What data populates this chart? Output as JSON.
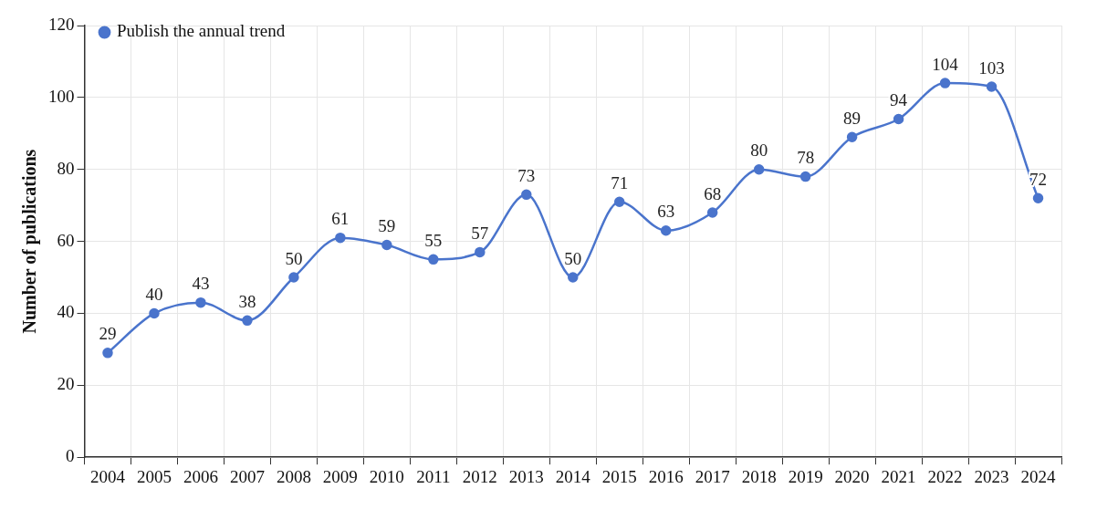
{
  "chart_data": {
    "type": "line",
    "ylabel": "Number of publications",
    "categories": [
      "2004",
      "2005",
      "2006",
      "2007",
      "2008",
      "2009",
      "2010",
      "2011",
      "2012",
      "2013",
      "2014",
      "2015",
      "2016",
      "2017",
      "2018",
      "2019",
      "2020",
      "2021",
      "2022",
      "2023",
      "2024"
    ],
    "series": [
      {
        "name": "Publish the annual trend",
        "color": "#4a74cc",
        "values": [
          29,
          40,
          43,
          38,
          50,
          61,
          59,
          55,
          57,
          73,
          50,
          71,
          63,
          68,
          80,
          78,
          89,
          94,
          104,
          103,
          72
        ]
      }
    ],
    "ylim": [
      0,
      120
    ],
    "yticks": [
      0,
      20,
      40,
      60,
      80,
      100,
      120
    ],
    "grid": true,
    "legend": "top left",
    "marker": "circle",
    "line_style": "solid",
    "data_labels": true
  }
}
